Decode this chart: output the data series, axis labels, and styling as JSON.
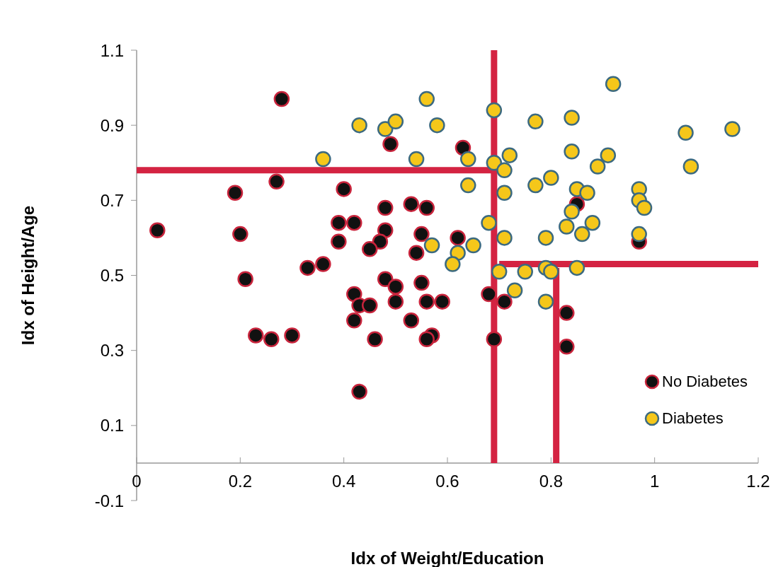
{
  "chart_data": {
    "type": "scatter",
    "xlabel": "Idx of Weight/Education",
    "ylabel": "Idx of Height/Age",
    "xlim": [
      0,
      1.2
    ],
    "xticks": [
      0,
      0.2,
      0.4,
      0.6,
      0.8,
      1,
      1.2
    ],
    "ylim": [
      -0.1,
      1.1
    ],
    "yticks": [
      -0.1,
      0.1,
      0.3,
      0.5,
      0.7,
      0.9,
      1.1
    ],
    "grid": false,
    "legend": "bottom right",
    "series": [
      {
        "type": "line",
        "color": "#d42342",
        "marker": "none",
        "x": [
          0.69,
          0.69
        ],
        "values": [
          1.1,
          0
        ]
      },
      {
        "type": "line",
        "color": "#d42342",
        "marker": "none",
        "x": [
          0,
          0.69
        ],
        "values": [
          0.78,
          0.78
        ]
      },
      {
        "type": "line",
        "color": "#d42342",
        "marker": "none",
        "x": [
          0.7,
          1.2
        ],
        "values": [
          0.53,
          0.53
        ]
      },
      {
        "type": "line",
        "color": "#d42342",
        "marker": "none",
        "x": [
          0.81,
          0.81
        ],
        "values": [
          0.52,
          0
        ]
      },
      {
        "name": "No Diabetes",
        "color": "#111111",
        "marker": "circle",
        "x": [
          0.04,
          0.28,
          0.19,
          0.2,
          0.21,
          0.23,
          0.26,
          0.3,
          0.27,
          0.33,
          0.36,
          0.4,
          0.39,
          0.42,
          0.39,
          0.48,
          0.48,
          0.47,
          0.45,
          0.49,
          0.42,
          0.43,
          0.45,
          0.42,
          0.46,
          0.43,
          0.48,
          0.5,
          0.5,
          0.63,
          0.53,
          0.56,
          0.55,
          0.54,
          0.62,
          0.85,
          0.55,
          0.56,
          0.59,
          0.53,
          0.57,
          0.56,
          0.68,
          0.71,
          0.83,
          0.83,
          0.69,
          0.97
        ],
        "values": [
          0.62,
          0.97,
          0.72,
          0.61,
          0.49,
          0.34,
          0.33,
          0.34,
          0.75,
          0.52,
          0.53,
          0.73,
          0.64,
          0.64,
          0.59,
          0.68,
          0.62,
          0.59,
          0.57,
          0.85,
          0.45,
          0.42,
          0.42,
          0.38,
          0.33,
          0.19,
          0.49,
          0.47,
          0.43,
          0.84,
          0.69,
          0.68,
          0.61,
          0.56,
          0.6,
          0.69,
          0.48,
          0.43,
          0.43,
          0.38,
          0.34,
          0.33,
          0.45,
          0.43,
          0.4,
          0.31,
          0.33,
          0.59
        ]
      },
      {
        "name": "Diabetes",
        "color": "#f5c71a",
        "marker": "circle",
        "x": [
          0.43,
          0.48,
          0.5,
          0.36,
          0.56,
          0.58,
          0.54,
          0.64,
          0.69,
          0.69,
          0.72,
          0.71,
          0.64,
          0.71,
          0.68,
          0.71,
          0.57,
          0.62,
          0.65,
          0.61,
          0.7,
          0.75,
          0.79,
          0.8,
          0.85,
          0.73,
          0.79,
          0.77,
          0.84,
          0.92,
          0.84,
          0.91,
          0.89,
          0.77,
          0.8,
          0.85,
          0.87,
          0.84,
          0.83,
          0.88,
          0.86,
          0.79,
          1.06,
          1.15,
          1.07,
          0.97,
          0.97,
          0.98,
          0.97
        ],
        "values": [
          0.9,
          0.89,
          0.91,
          0.81,
          0.97,
          0.9,
          0.81,
          0.81,
          0.94,
          0.8,
          0.82,
          0.78,
          0.74,
          0.72,
          0.64,
          0.6,
          0.58,
          0.56,
          0.58,
          0.53,
          0.51,
          0.51,
          0.52,
          0.51,
          0.52,
          0.46,
          0.43,
          0.91,
          0.92,
          1.01,
          0.83,
          0.82,
          0.79,
          0.74,
          0.76,
          0.73,
          0.72,
          0.67,
          0.63,
          0.64,
          0.61,
          0.6,
          0.88,
          0.89,
          0.79,
          0.73,
          0.7,
          0.68,
          0.61
        ]
      }
    ]
  }
}
